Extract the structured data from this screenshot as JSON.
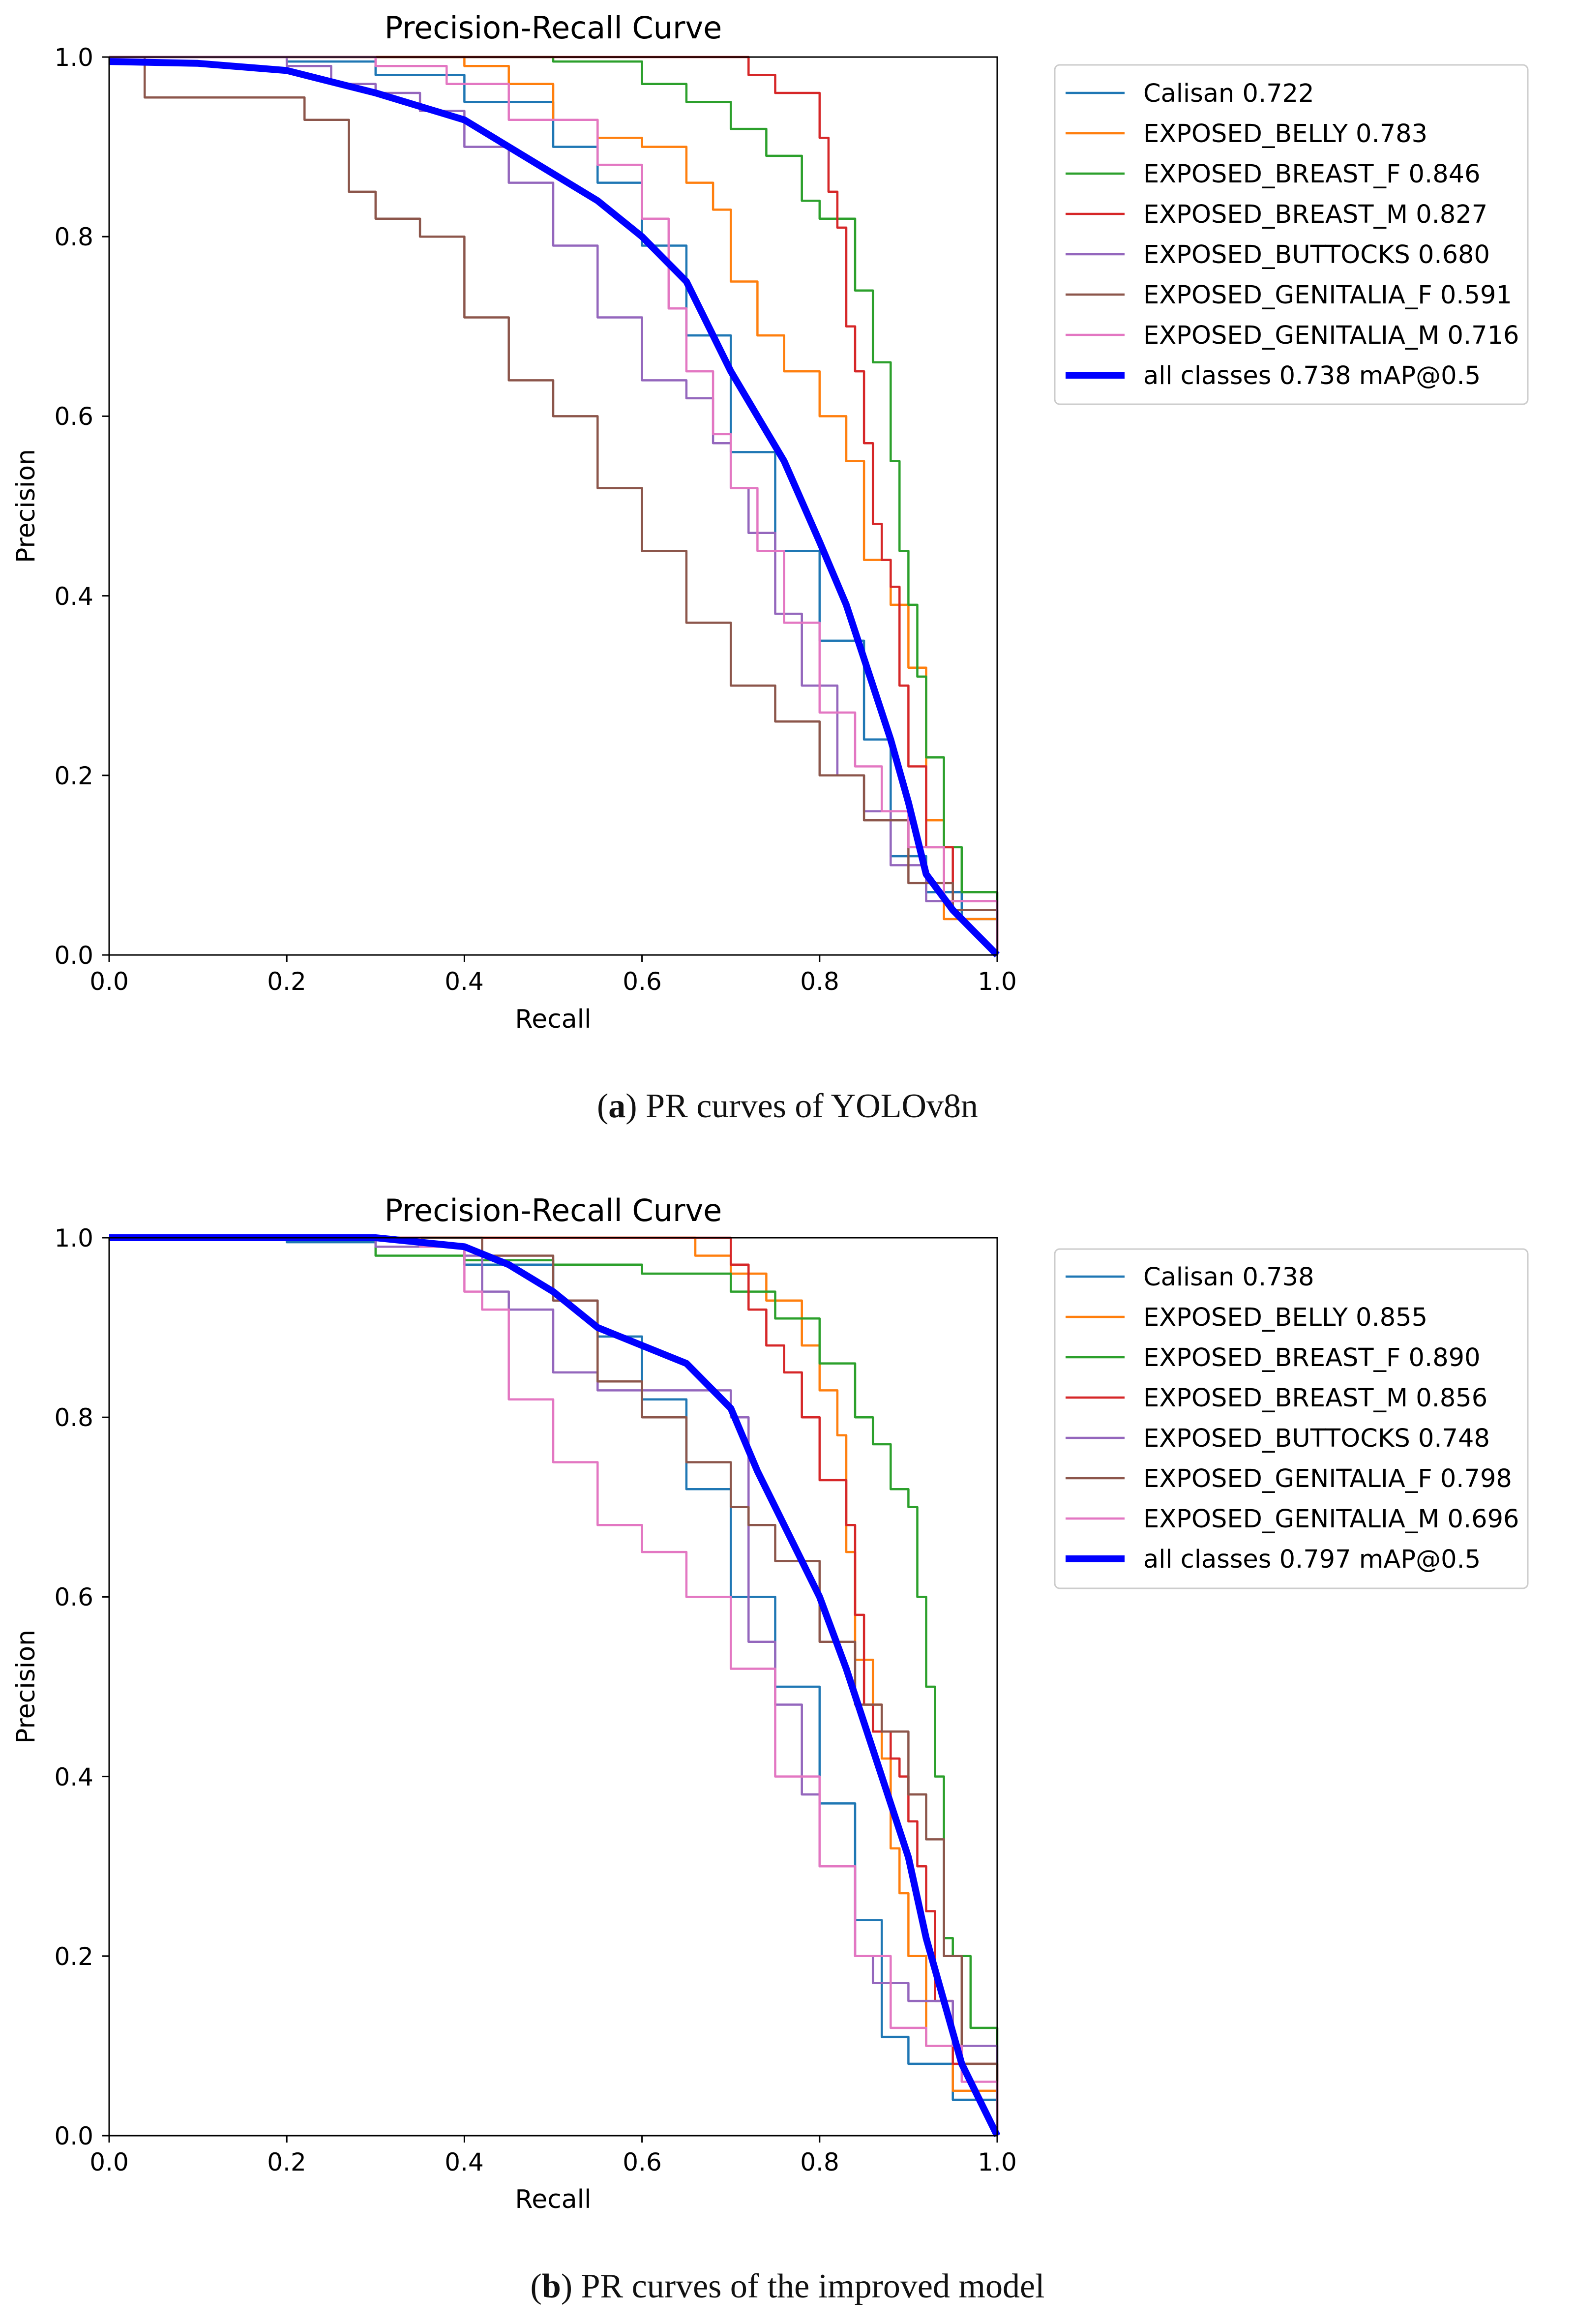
{
  "figure_captions": [
    {
      "tag": "a",
      "text": "PR curves of YOLOv8n"
    },
    {
      "tag": "b",
      "text": "PR curves of the improved model"
    }
  ],
  "chart_data": [
    {
      "type": "line",
      "title": "Precision-Recall Curve",
      "xlabel": "Recall",
      "ylabel": "Precision",
      "xlim": [
        0,
        1
      ],
      "ylim": [
        0,
        1
      ],
      "xticks": [
        "0.0",
        "0.2",
        "0.4",
        "0.6",
        "0.8",
        "1.0"
      ],
      "yticks": [
        "0.0",
        "0.2",
        "0.4",
        "0.6",
        "0.8",
        "1.0"
      ],
      "legend_position": "outside-right-top",
      "series": [
        {
          "name": "Calisan 0.722",
          "color": "#1f77b4",
          "width": "thin",
          "x": [
            0,
            0.2,
            0.3,
            0.4,
            0.5,
            0.55,
            0.6,
            0.65,
            0.7,
            0.75,
            0.8,
            0.85,
            0.88,
            0.92,
            0.96,
            1.0
          ],
          "y": [
            1.0,
            0.995,
            0.98,
            0.95,
            0.9,
            0.86,
            0.79,
            0.69,
            0.56,
            0.45,
            0.35,
            0.24,
            0.11,
            0.07,
            0.04,
            0.0
          ]
        },
        {
          "name": "EXPOSED_BELLY 0.783",
          "color": "#ff7f0e",
          "width": "thin",
          "x": [
            0,
            0.2,
            0.3,
            0.4,
            0.45,
            0.5,
            0.55,
            0.6,
            0.65,
            0.68,
            0.7,
            0.73,
            0.76,
            0.8,
            0.83,
            0.85,
            0.88,
            0.9,
            0.92,
            0.94,
            1.0
          ],
          "y": [
            1.0,
            1.0,
            1.0,
            0.99,
            0.97,
            0.93,
            0.91,
            0.9,
            0.86,
            0.83,
            0.75,
            0.69,
            0.65,
            0.6,
            0.55,
            0.44,
            0.39,
            0.32,
            0.15,
            0.04,
            0.0
          ]
        },
        {
          "name": "EXPOSED_BREAST_F 0.846",
          "color": "#2ca02c",
          "width": "thin",
          "x": [
            0,
            0.26,
            0.5,
            0.6,
            0.65,
            0.7,
            0.74,
            0.78,
            0.8,
            0.84,
            0.86,
            0.88,
            0.89,
            0.9,
            0.91,
            0.92,
            0.94,
            0.96,
            1.0
          ],
          "y": [
            1.0,
            1.0,
            0.995,
            0.97,
            0.95,
            0.92,
            0.89,
            0.84,
            0.82,
            0.74,
            0.66,
            0.55,
            0.45,
            0.39,
            0.31,
            0.22,
            0.12,
            0.07,
            0.0
          ]
        },
        {
          "name": "EXPOSED_BREAST_M 0.827",
          "color": "#d62728",
          "width": "thin",
          "x": [
            0,
            0.68,
            0.72,
            0.75,
            0.79,
            0.8,
            0.81,
            0.82,
            0.83,
            0.84,
            0.85,
            0.86,
            0.87,
            0.88,
            0.89,
            0.9,
            0.92,
            0.95,
            1.0
          ],
          "y": [
            1.0,
            1.0,
            0.98,
            0.96,
            0.96,
            0.91,
            0.85,
            0.81,
            0.7,
            0.65,
            0.57,
            0.48,
            0.44,
            0.41,
            0.3,
            0.21,
            0.12,
            0.05,
            0.0
          ]
        },
        {
          "name": "EXPOSED_BUTTOCKS 0.680",
          "color": "#9467bd",
          "width": "thin",
          "x": [
            0,
            0.2,
            0.25,
            0.3,
            0.35,
            0.4,
            0.45,
            0.5,
            0.55,
            0.6,
            0.65,
            0.68,
            0.7,
            0.72,
            0.75,
            0.78,
            0.82,
            0.85,
            0.88,
            0.92,
            1.0
          ],
          "y": [
            1.0,
            0.99,
            0.97,
            0.96,
            0.94,
            0.9,
            0.86,
            0.79,
            0.71,
            0.64,
            0.62,
            0.57,
            0.52,
            0.47,
            0.38,
            0.3,
            0.2,
            0.16,
            0.1,
            0.06,
            0.0
          ]
        },
        {
          "name": "EXPOSED_GENITALIA_F 0.591",
          "color": "#8c564b",
          "width": "thin",
          "x": [
            0,
            0.03,
            0.04,
            0.2,
            0.22,
            0.27,
            0.3,
            0.35,
            0.4,
            0.45,
            0.5,
            0.55,
            0.6,
            0.65,
            0.7,
            0.75,
            0.8,
            0.85,
            0.9,
            0.95,
            1.0
          ],
          "y": [
            1.0,
            1.0,
            0.955,
            0.955,
            0.93,
            0.85,
            0.82,
            0.8,
            0.71,
            0.64,
            0.6,
            0.52,
            0.45,
            0.37,
            0.3,
            0.26,
            0.2,
            0.15,
            0.08,
            0.05,
            0.0
          ]
        },
        {
          "name": "EXPOSED_GENITALIA_M 0.716",
          "color": "#e377c2",
          "width": "thin",
          "x": [
            0,
            0.2,
            0.3,
            0.38,
            0.45,
            0.55,
            0.6,
            0.63,
            0.65,
            0.68,
            0.7,
            0.73,
            0.76,
            0.8,
            0.84,
            0.87,
            0.9,
            0.94,
            1.0
          ],
          "y": [
            1.0,
            1.0,
            0.99,
            0.97,
            0.93,
            0.88,
            0.82,
            0.72,
            0.65,
            0.58,
            0.52,
            0.45,
            0.37,
            0.27,
            0.21,
            0.16,
            0.12,
            0.06,
            0.0
          ]
        },
        {
          "name": "all classes 0.738 mAP@0.5",
          "color": "#0000ff",
          "width": "thick",
          "x": [
            0,
            0.1,
            0.2,
            0.3,
            0.4,
            0.45,
            0.5,
            0.55,
            0.6,
            0.65,
            0.7,
            0.73,
            0.76,
            0.8,
            0.83,
            0.86,
            0.88,
            0.9,
            0.92,
            0.95,
            1.0
          ],
          "y": [
            0.995,
            0.993,
            0.985,
            0.96,
            0.93,
            0.9,
            0.87,
            0.84,
            0.8,
            0.75,
            0.65,
            0.6,
            0.55,
            0.46,
            0.39,
            0.3,
            0.24,
            0.17,
            0.09,
            0.05,
            0.0
          ]
        }
      ]
    },
    {
      "type": "line",
      "title": "Precision-Recall Curve",
      "xlabel": "Recall",
      "ylabel": "Precision",
      "xlim": [
        0,
        1
      ],
      "ylim": [
        0,
        1
      ],
      "xticks": [
        "0.0",
        "0.2",
        "0.4",
        "0.6",
        "0.8",
        "1.0"
      ],
      "yticks": [
        "0.0",
        "0.2",
        "0.4",
        "0.6",
        "0.8",
        "1.0"
      ],
      "legend_position": "outside-right-top",
      "series": [
        {
          "name": "Calisan 0.738",
          "color": "#1f77b4",
          "width": "thin",
          "x": [
            0,
            0.2,
            0.3,
            0.4,
            0.5,
            0.55,
            0.6,
            0.65,
            0.7,
            0.75,
            0.8,
            0.84,
            0.87,
            0.9,
            0.95,
            1.0
          ],
          "y": [
            1.0,
            0.995,
            0.99,
            0.97,
            0.93,
            0.89,
            0.82,
            0.72,
            0.6,
            0.5,
            0.37,
            0.24,
            0.11,
            0.08,
            0.04,
            0.0
          ]
        },
        {
          "name": "EXPOSED_BELLY 0.855",
          "color": "#ff7f0e",
          "width": "thin",
          "x": [
            0,
            0.64,
            0.66,
            0.7,
            0.74,
            0.78,
            0.8,
            0.82,
            0.83,
            0.84,
            0.86,
            0.87,
            0.88,
            0.89,
            0.9,
            0.92,
            0.95,
            1.0
          ],
          "y": [
            1.0,
            1.0,
            0.98,
            0.96,
            0.93,
            0.88,
            0.83,
            0.78,
            0.65,
            0.53,
            0.48,
            0.42,
            0.32,
            0.27,
            0.2,
            0.1,
            0.05,
            0.0
          ]
        },
        {
          "name": "EXPOSED_BREAST_F 0.890",
          "color": "#2ca02c",
          "width": "thin",
          "x": [
            0,
            0.3,
            0.4,
            0.5,
            0.6,
            0.7,
            0.75,
            0.8,
            0.84,
            0.86,
            0.88,
            0.9,
            0.91,
            0.92,
            0.93,
            0.94,
            0.95,
            0.97,
            1.0
          ],
          "y": [
            1.0,
            0.98,
            0.975,
            0.97,
            0.96,
            0.94,
            0.91,
            0.86,
            0.8,
            0.77,
            0.72,
            0.7,
            0.6,
            0.5,
            0.4,
            0.22,
            0.2,
            0.12,
            0.0
          ]
        },
        {
          "name": "EXPOSED_BREAST_M 0.856",
          "color": "#d62728",
          "width": "thin",
          "x": [
            0,
            0.68,
            0.7,
            0.72,
            0.74,
            0.76,
            0.78,
            0.8,
            0.83,
            0.84,
            0.85,
            0.86,
            0.88,
            0.89,
            0.9,
            0.91,
            0.92,
            0.93,
            0.95,
            1.0
          ],
          "y": [
            1.0,
            1.0,
            0.97,
            0.92,
            0.88,
            0.85,
            0.8,
            0.73,
            0.68,
            0.58,
            0.48,
            0.45,
            0.42,
            0.4,
            0.35,
            0.3,
            0.25,
            0.15,
            0.08,
            0.0
          ]
        },
        {
          "name": "EXPOSED_BUTTOCKS 0.748",
          "color": "#9467bd",
          "width": "thin",
          "x": [
            0,
            0.3,
            0.4,
            0.42,
            0.45,
            0.5,
            0.55,
            0.6,
            0.65,
            0.68,
            0.7,
            0.72,
            0.75,
            0.78,
            0.8,
            0.84,
            0.86,
            0.9,
            0.95,
            1.0
          ],
          "y": [
            1.0,
            0.99,
            0.98,
            0.94,
            0.92,
            0.85,
            0.83,
            0.83,
            0.83,
            0.83,
            0.8,
            0.55,
            0.48,
            0.38,
            0.3,
            0.2,
            0.17,
            0.15,
            0.1,
            0.0
          ]
        },
        {
          "name": "EXPOSED_GENITALIA_F 0.798",
          "color": "#8c564b",
          "width": "thin",
          "x": [
            0,
            0.4,
            0.42,
            0.48,
            0.5,
            0.55,
            0.6,
            0.65,
            0.7,
            0.72,
            0.75,
            0.8,
            0.84,
            0.87,
            0.9,
            0.92,
            0.94,
            0.96,
            1.0
          ],
          "y": [
            1.0,
            1.0,
            0.98,
            0.98,
            0.93,
            0.84,
            0.8,
            0.75,
            0.7,
            0.68,
            0.64,
            0.55,
            0.48,
            0.45,
            0.38,
            0.33,
            0.2,
            0.08,
            0.0
          ]
        },
        {
          "name": "EXPOSED_GENITALIA_M 0.696",
          "color": "#e377c2",
          "width": "thin",
          "x": [
            0,
            0.2,
            0.35,
            0.4,
            0.42,
            0.45,
            0.5,
            0.55,
            0.6,
            0.65,
            0.7,
            0.75,
            0.8,
            0.84,
            0.88,
            0.92,
            0.96,
            1.0
          ],
          "y": [
            1.0,
            1.0,
            0.99,
            0.94,
            0.92,
            0.82,
            0.75,
            0.68,
            0.65,
            0.6,
            0.52,
            0.4,
            0.3,
            0.2,
            0.12,
            0.1,
            0.06,
            0.0
          ]
        },
        {
          "name": "all classes 0.797 mAP@0.5",
          "color": "#0000ff",
          "width": "thick",
          "x": [
            0,
            0.2,
            0.3,
            0.4,
            0.45,
            0.5,
            0.55,
            0.6,
            0.65,
            0.7,
            0.73,
            0.76,
            0.8,
            0.83,
            0.86,
            0.88,
            0.9,
            0.92,
            0.94,
            0.96,
            1.0
          ],
          "y": [
            1.0,
            1.0,
            1.0,
            0.99,
            0.97,
            0.94,
            0.9,
            0.88,
            0.86,
            0.81,
            0.74,
            0.68,
            0.6,
            0.52,
            0.43,
            0.37,
            0.31,
            0.22,
            0.15,
            0.08,
            0.0
          ]
        }
      ]
    }
  ]
}
